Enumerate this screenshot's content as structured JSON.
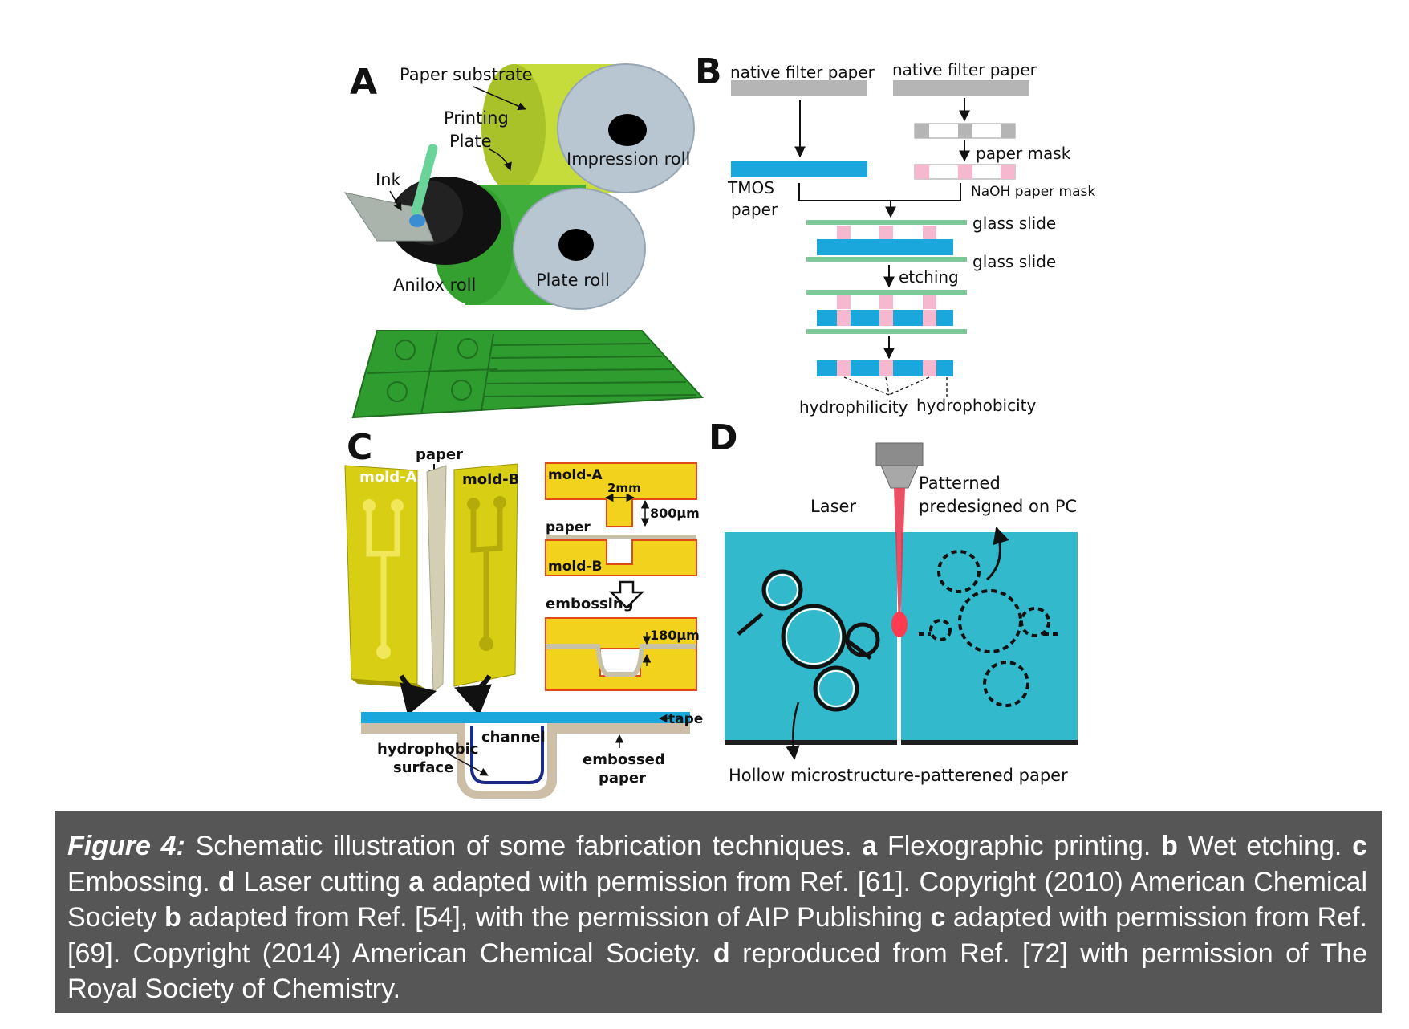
{
  "panel_a": {
    "letter": "A",
    "labels": {
      "paper_substrate": "Paper substrate",
      "printing": "Printing",
      "plate": "Plate",
      "impression_roll": "Impression roll",
      "ink": "Ink",
      "anilox_roll": "Anilox roll",
      "plate_roll": "Plate roll"
    }
  },
  "panel_b": {
    "letter": "B",
    "labels": {
      "native_filter_paper_left": "native filter paper",
      "native_filter_paper_right": "native filter paper",
      "paper_mask": "paper mask",
      "tmos": "TMOS",
      "paper": "paper",
      "naoh_paper_mask": "NaOH paper mask",
      "glass_slide_1": "glass slide",
      "glass_slide_2": "glass slide",
      "etching": "etching",
      "hydrophilicity": "hydrophilicity",
      "hydrophobicity": "hydrophobicity"
    }
  },
  "panel_c": {
    "letter": "C",
    "labels": {
      "paper_top": "paper",
      "mold_a": "mold-A",
      "mold_b": "mold-B",
      "mold_a_section": "mold-A",
      "width_2mm": "2mm",
      "depth_800": "800μm",
      "paper_section": "paper",
      "mold_b_section": "mold-B",
      "embossing": "embossing",
      "depth_180": "180μm",
      "tape": "tape",
      "channel": "channel",
      "hydrophobic": "hydrophobic",
      "surface": "surface",
      "embossed": "embossed",
      "paper_bottom": "paper"
    }
  },
  "panel_d": {
    "letter": "D",
    "labels": {
      "laser": "Laser",
      "patterned": "Patterned",
      "predesigned": "predesigned on PC",
      "hollow": "Hollow microstructure-patterened paper"
    }
  },
  "caption": {
    "label": "Figure 4:",
    "t1": " Schematic illustration of some fabrication techniques. ",
    "k_a": "a",
    "t2": " Flexographic printing. ",
    "k_b": "b",
    "t3": " Wet etching. ",
    "k_c": "c",
    "t4": " Embossing. ",
    "k_d": "d",
    "t5": " Laser cutting ",
    "k_a2": "a",
    "t6": " adapted with permission from Ref. [61]. Copyright (2010) American Chemi­cal Society ",
    "k_b2": "b",
    "t7": " adapted from Ref. [54], with the permission of AIP Publishing ",
    "k_c2": "c",
    "t8": " adapted with permission from Ref. [69]. Copyright (2014) American Chemical Society. ",
    "k_d2": "d",
    "t9": " reproduced from Ref. [72] with permission of The Royal Society of Chemistry."
  },
  "colors": {
    "paper_green": "#c6dc3a",
    "roll_grey": "#b8c6d2",
    "plate_green": "#3fae3a",
    "cyan": "#1aa8dc",
    "pink": "#f6b8cf",
    "glass": "#7ec99a",
    "gold": "#f2d21c",
    "panel_d_bg": "#33b9cc",
    "caption_bg": "#565656"
  }
}
